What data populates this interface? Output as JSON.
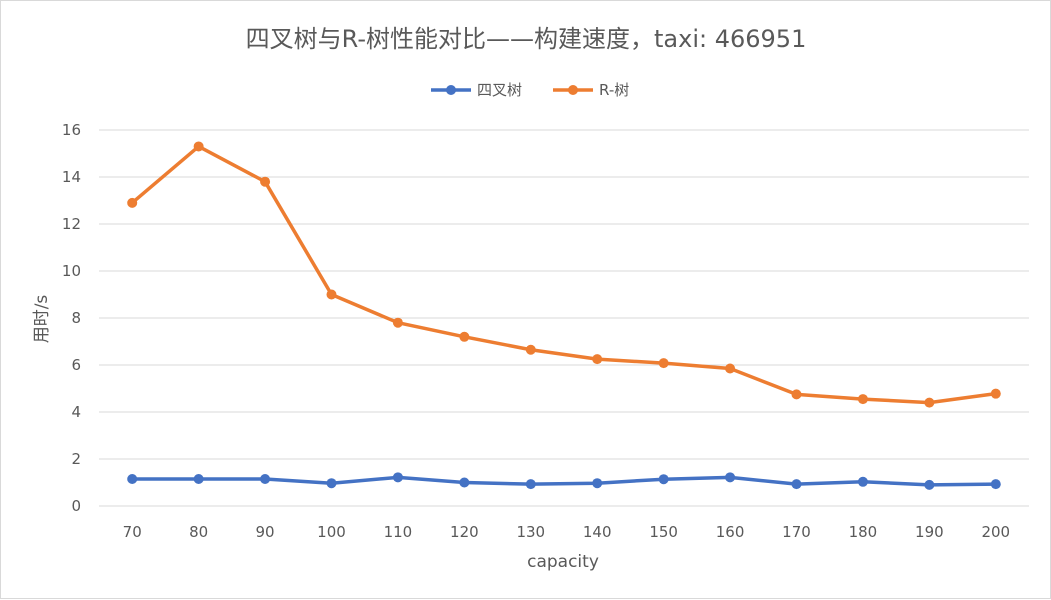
{
  "chart_data": {
    "type": "line",
    "title": "四叉树与R-树性能对比——构建速度，taxi: 466951",
    "xlabel": "capacity",
    "ylabel": "用时/s",
    "ylim": [
      0,
      16
    ],
    "yticks": [
      0,
      2,
      4,
      6,
      8,
      10,
      12,
      14,
      16
    ],
    "grid": true,
    "legend_position": "top",
    "categories": [
      "70",
      "80",
      "90",
      "100",
      "110",
      "120",
      "130",
      "140",
      "150",
      "160",
      "170",
      "180",
      "190",
      "200"
    ],
    "series": [
      {
        "name": "四叉树",
        "color": "#4472c4",
        "values": [
          1.15,
          1.15,
          1.15,
          0.97,
          1.22,
          1.0,
          0.93,
          0.97,
          1.14,
          1.22,
          0.93,
          1.03,
          0.9,
          0.93
        ]
      },
      {
        "name": "R-树",
        "color": "#ed7d31",
        "values": [
          12.9,
          15.3,
          13.8,
          9.0,
          7.8,
          7.2,
          6.65,
          6.25,
          6.08,
          5.85,
          4.75,
          4.55,
          4.4,
          4.78
        ]
      }
    ]
  }
}
